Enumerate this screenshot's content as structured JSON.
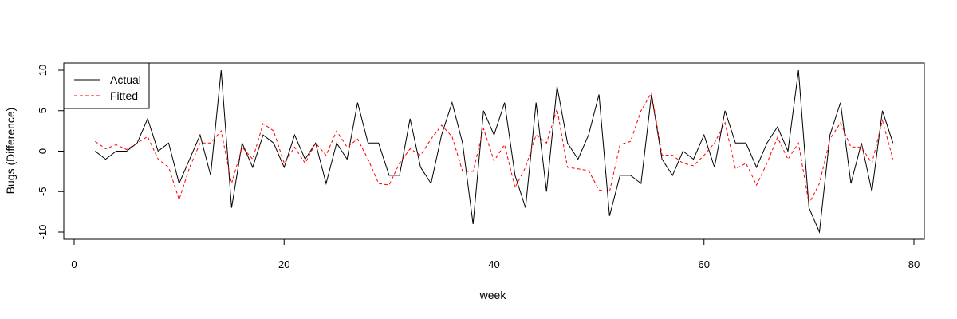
{
  "chart_data": {
    "type": "line",
    "title": "",
    "xlabel": "week",
    "ylabel": "Bugs (Difference)",
    "xlim": [
      0,
      80
    ],
    "ylim": [
      -10,
      10
    ],
    "x_ticks": [
      0,
      20,
      40,
      60,
      80
    ],
    "y_ticks": [
      -10,
      -5,
      0,
      5,
      10
    ],
    "grid": false,
    "legend_position": "top-left",
    "series": [
      {
        "name": "Actual",
        "color": "#000000",
        "line_style": "solid",
        "x": [
          2,
          3,
          4,
          5,
          6,
          7,
          8,
          9,
          10,
          11,
          12,
          13,
          14,
          15,
          16,
          17,
          18,
          19,
          20,
          21,
          22,
          23,
          24,
          25,
          26,
          27,
          28,
          29,
          30,
          31,
          32,
          33,
          34,
          35,
          36,
          37,
          38,
          39,
          40,
          41,
          42,
          43,
          44,
          45,
          46,
          47,
          48,
          49,
          50,
          51,
          52,
          53,
          54,
          55,
          56,
          57,
          58,
          59,
          60,
          61,
          62,
          63,
          64,
          65,
          66,
          67,
          68,
          69,
          70,
          71,
          72,
          73,
          74,
          75,
          76,
          77,
          78
        ],
        "values": [
          0,
          -1,
          0,
          0,
          1,
          4,
          0,
          1,
          -4,
          -1,
          2,
          -3,
          10,
          -7,
          1,
          -2,
          2,
          1,
          -2,
          2,
          -1,
          1,
          -4,
          1,
          -1,
          6,
          1,
          1,
          -3,
          -3,
          4,
          -2,
          -4,
          2,
          6,
          1,
          -9,
          5,
          2,
          6,
          -3,
          -7,
          6,
          -5,
          8,
          1,
          -1,
          2,
          7,
          -8,
          -3,
          -3,
          -4,
          7,
          -1,
          -3,
          0,
          -1,
          2,
          -2,
          5,
          1,
          1,
          -2,
          1,
          3,
          0,
          10,
          -7,
          -10,
          2,
          6,
          -4,
          1,
          -5,
          5,
          1
        ]
      },
      {
        "name": "Fitted",
        "color": "#ff0000",
        "line_style": "dashed",
        "x": [
          2,
          3,
          4,
          5,
          6,
          7,
          8,
          9,
          10,
          11,
          12,
          13,
          14,
          15,
          16,
          17,
          18,
          19,
          20,
          21,
          22,
          23,
          24,
          25,
          26,
          27,
          28,
          29,
          30,
          31,
          32,
          33,
          34,
          35,
          36,
          37,
          38,
          39,
          40,
          41,
          42,
          43,
          44,
          45,
          46,
          47,
          48,
          49,
          50,
          51,
          52,
          53,
          54,
          55,
          56,
          57,
          58,
          59,
          60,
          61,
          62,
          63,
          64,
          65,
          66,
          67,
          68,
          69,
          70,
          71,
          72,
          73,
          74,
          75,
          76,
          77,
          78
        ],
        "values": [
          1.2,
          0.3,
          0.8,
          0.2,
          1.0,
          1.8,
          -1.0,
          -2.0,
          -6.0,
          -2.0,
          1.0,
          1.0,
          2.5,
          -4.0,
          0.5,
          -1.0,
          3.4,
          2.5,
          -1.5,
          0.5,
          -1.5,
          1.0,
          -0.5,
          2.5,
          0.5,
          1.5,
          -1.0,
          -4.0,
          -4.2,
          -1.5,
          0.3,
          -0.5,
          1.5,
          3.2,
          1.8,
          -2.5,
          -2.5,
          2.8,
          -1.2,
          0.8,
          -4.5,
          -2.0,
          2.0,
          1.0,
          5.2,
          -2.0,
          -2.2,
          -2.4,
          -4.8,
          -5.0,
          0.8,
          1.2,
          5.0,
          7.2,
          -0.5,
          -0.5,
          -1.5,
          -1.8,
          -0.5,
          1.0,
          3.5,
          -2.2,
          -1.5,
          -4.2,
          -1.5,
          1.7,
          -1.0,
          1.0,
          -6.5,
          -4.0,
          1.5,
          3.5,
          0.5,
          0.5,
          -1.5,
          3.8,
          -1.0
        ]
      }
    ]
  }
}
